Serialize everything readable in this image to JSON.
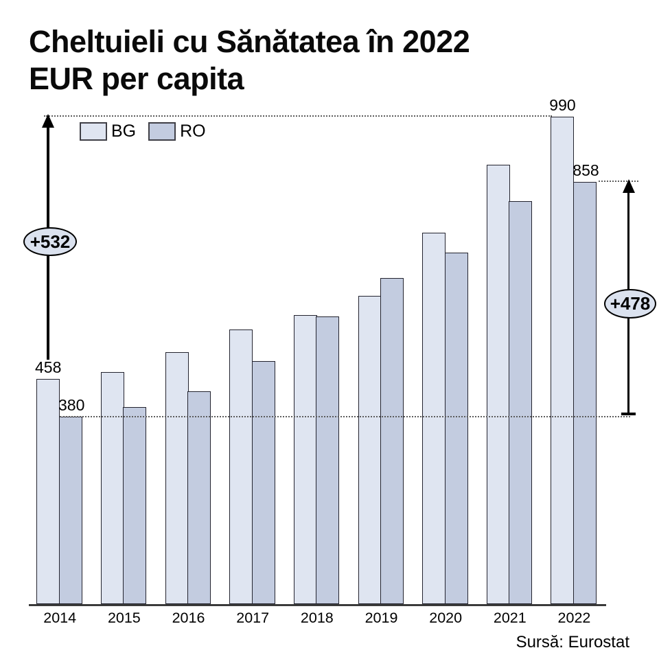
{
  "title": {
    "line1": "Cheltuieli cu Sănătatea în 2022",
    "line2": "EUR per capita"
  },
  "legend": {
    "items": [
      {
        "label": "BG",
        "color": "#dfe5f1"
      },
      {
        "label": "RO",
        "color": "#c3cce0"
      }
    ]
  },
  "annotations": {
    "left_delta": "+532",
    "right_delta": "+478"
  },
  "source": "Sursă: Eurostat",
  "colors": {
    "bg_series": "#dfe5f1",
    "ro_series": "#c3cce0",
    "bar_border": "#23232e",
    "annotation_fill": "#dbe2ef",
    "guide_line": "#5c5c5c"
  },
  "chart_data": {
    "type": "bar",
    "title": "Cheltuieli cu Sănătatea în 2022 EUR per capita",
    "categories": [
      "2014",
      "2015",
      "2016",
      "2017",
      "2018",
      "2019",
      "2020",
      "2021",
      "2022"
    ],
    "series": [
      {
        "name": "BG",
        "color": "#dfe5f1",
        "values": [
          458,
          471,
          512,
          558,
          587,
          626,
          754,
          892,
          990
        ]
      },
      {
        "name": "RO",
        "color": "#c3cce0",
        "values": [
          380,
          400,
          432,
          494,
          584,
          662,
          714,
          819,
          858
        ]
      }
    ],
    "value_labels": [
      {
        "category": "2014",
        "series": "BG",
        "text": "458"
      },
      {
        "category": "2014",
        "series": "RO",
        "text": "380"
      },
      {
        "category": "2022",
        "series": "BG",
        "text": "990"
      },
      {
        "category": "2022",
        "series": "RO",
        "text": "858"
      }
    ],
    "annotations": [
      {
        "text": "+532",
        "meaning": "BG growth 2014 to 2022 (990 - 458)"
      },
      {
        "text": "+478",
        "meaning": "RO growth 2014 to 2022 (858 - 380)"
      }
    ],
    "xlabel": "",
    "ylabel": "EUR per capita",
    "ylim": [
      0,
      1000
    ],
    "grid": false,
    "legend_position": "top-left",
    "source": "Sursă: Eurostat"
  }
}
